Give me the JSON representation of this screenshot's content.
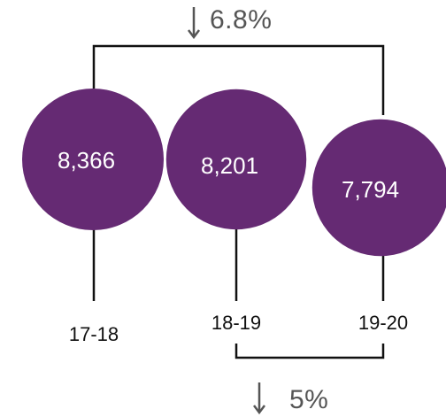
{
  "chart_data": {
    "type": "bubble",
    "categories": [
      "17-18",
      "18-19",
      "19-20"
    ],
    "values": [
      8366,
      8201,
      7794
    ],
    "value_labels": [
      "8,366",
      "8,201",
      "7,794"
    ],
    "bubble_color": "#652a73",
    "changes": [
      {
        "label": "6.8%",
        "direction": "down",
        "from": "17-18",
        "to": "19-20"
      },
      {
        "label": "5%",
        "direction": "down",
        "from": "18-19",
        "to": "19-20"
      }
    ],
    "text_color": "#111111",
    "change_color": "#555555",
    "line_color": "#111111"
  }
}
